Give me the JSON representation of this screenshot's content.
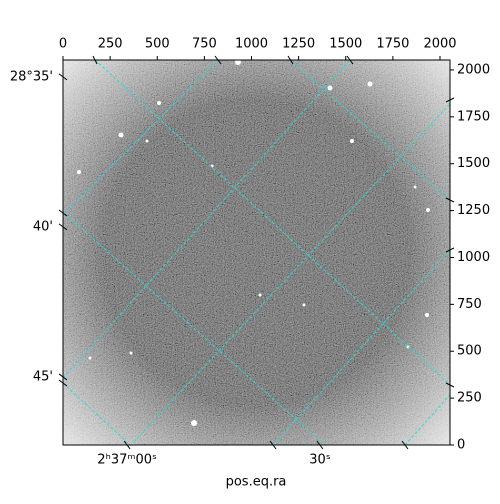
{
  "chart_data": {
    "type": "image",
    "xlabel": "pos.eq.ra",
    "xlim": [
      0,
      2053
    ],
    "ylim": [
      0,
      2053
    ],
    "xticks": [
      0,
      250,
      500,
      750,
      1000,
      1250,
      1500,
      1750,
      2000
    ],
    "yticks": [
      0,
      250,
      500,
      750,
      1000,
      1250,
      1500,
      1750,
      2000
    ],
    "ra_ticks": [
      {
        "value": 340,
        "label": "2ʰ37ᵐ00ˢ"
      },
      {
        "value": 1363,
        "label": "30ˢ"
      }
    ],
    "dec_ticks": [
      {
        "value": 1963,
        "label": "28°35'"
      },
      {
        "value": 1163,
        "label": "40'"
      },
      {
        "value": 363,
        "label": "45'"
      }
    ],
    "grid_color": "#33d6d6"
  }
}
